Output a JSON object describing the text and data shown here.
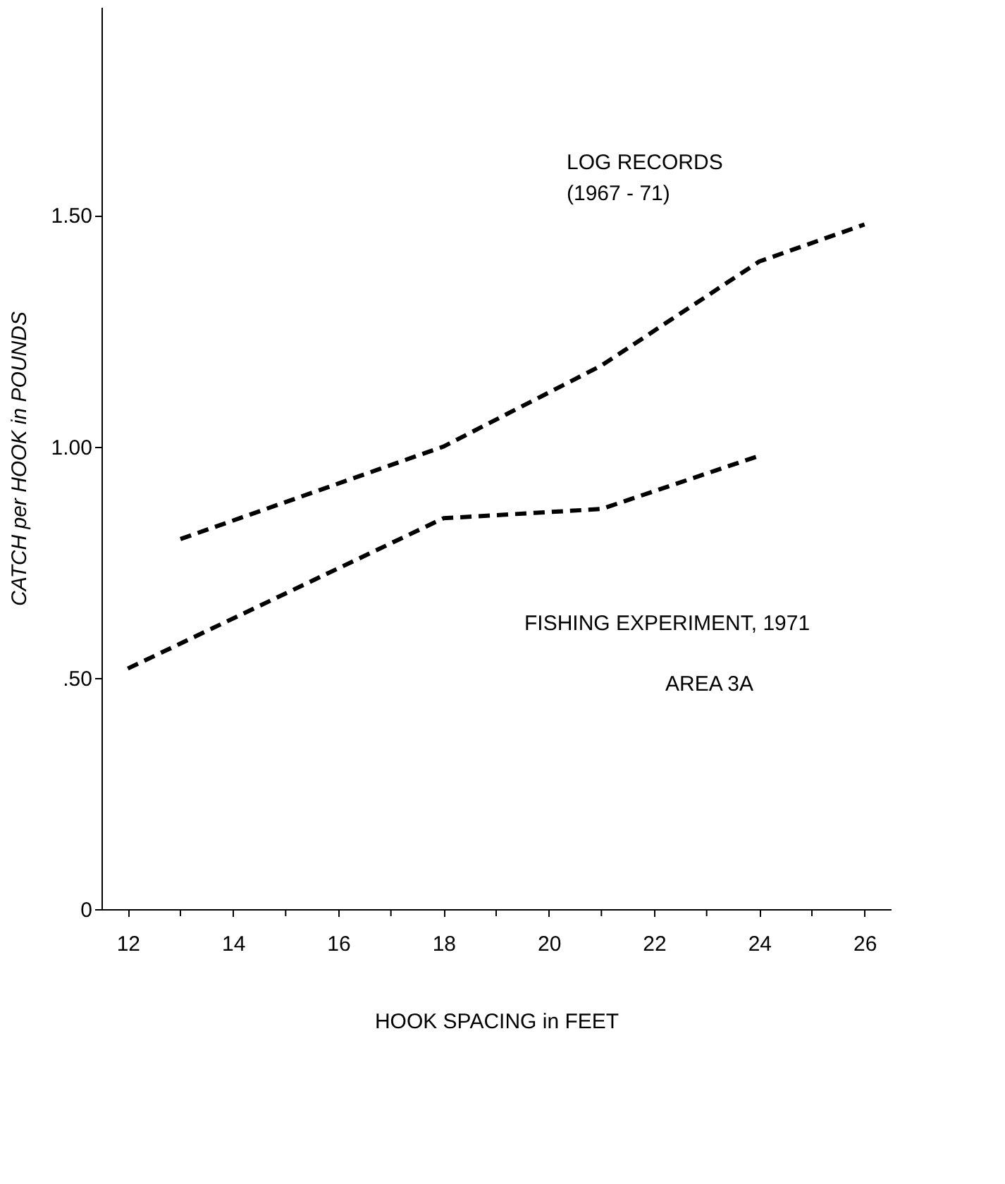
{
  "chart_data": {
    "type": "line",
    "xlabel": "HOOK SPACING in FEET",
    "ylabel": "CATCH per HOOK in POUNDS",
    "series": [
      {
        "x": [
          13,
          18,
          21,
          24,
          26
        ],
        "values": [
          0.8,
          1.0,
          1.175,
          1.4,
          1.48
        ],
        "color": "#000000"
      },
      {
        "x": [
          12,
          18,
          21,
          24
        ],
        "values": [
          0.52,
          0.845,
          0.865,
          0.98
        ],
        "color": "#000000"
      }
    ],
    "line_style": "dashed",
    "marker": "none",
    "grid": false,
    "xlim": [
      11.5,
      26.5
    ],
    "ylim": [
      0,
      1.95
    ],
    "xticks": [
      12,
      {
        "value": 13,
        "label": null
      },
      14,
      {
        "value": 15,
        "label": null
      },
      16,
      {
        "value": 17,
        "label": null
      },
      18,
      {
        "value": 19,
        "label": null
      },
      20,
      {
        "value": 21,
        "label": null
      },
      22,
      {
        "value": 23,
        "label": null
      },
      24,
      {
        "value": 25,
        "label": null
      },
      26
    ],
    "yticks": [
      {
        "value": 0,
        "label": "0"
      },
      {
        "value": 0.5,
        "label": ".50"
      },
      {
        "value": 1.0,
        "label": "1.00"
      },
      {
        "value": 1.5,
        "label": "1.50"
      }
    ],
    "annotations": [
      "LOG RECORDS\n(1967 - 71)",
      "FISHING EXPERIMENT, 1971",
      "AREA 3A"
    ]
  }
}
